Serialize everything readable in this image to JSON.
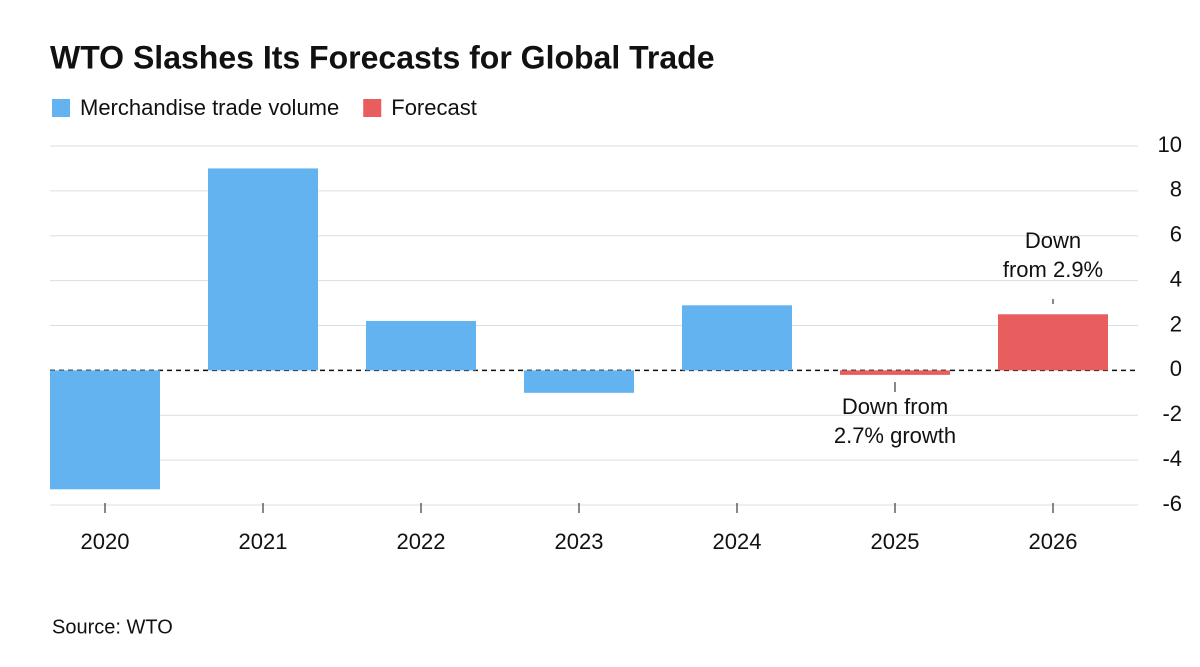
{
  "chart_data": {
    "type": "bar",
    "title": "WTO Slashes Its Forecasts for Global Trade",
    "categories": [
      "2020",
      "2021",
      "2022",
      "2023",
      "2024",
      "2025",
      "2026"
    ],
    "series": [
      {
        "name": "Merchandise trade volume",
        "color": "#63b3f0",
        "values": [
          -5.3,
          9.0,
          2.2,
          -1.0,
          2.9,
          null,
          null
        ]
      },
      {
        "name": "Forecast",
        "color": "#e85d5d",
        "values": [
          null,
          null,
          null,
          null,
          null,
          -0.2,
          2.5
        ]
      }
    ],
    "ylim": [
      -6,
      10
    ],
    "yticks": [
      -6,
      -4,
      -2,
      0,
      2,
      4,
      6,
      8,
      10
    ],
    "grid": true,
    "annotations": [
      {
        "lines": [
          "Down from",
          "2.7% growth"
        ]
      },
      {
        "lines": [
          "Down",
          "from 2.9%"
        ]
      }
    ],
    "source": "Source: WTO"
  }
}
